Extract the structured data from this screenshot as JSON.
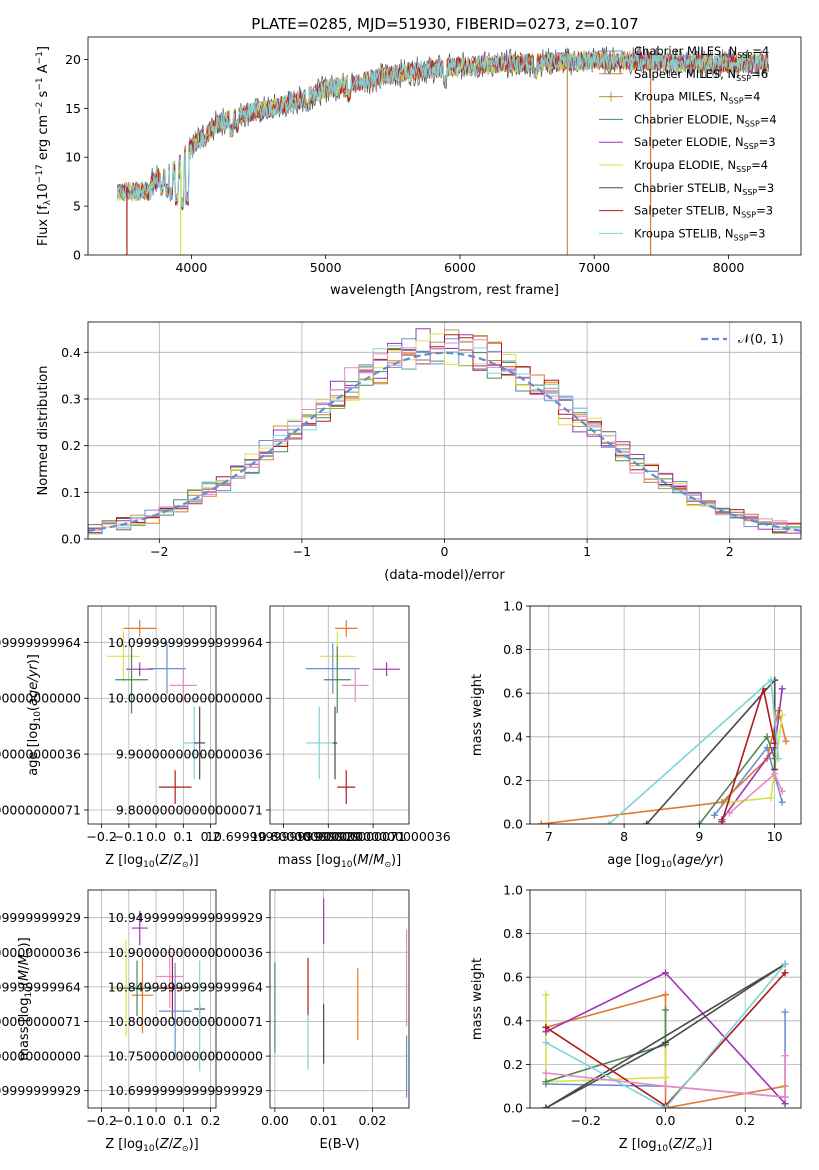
{
  "figure_title": "PLATE=0285, MJD=51930, FIBERID=0273, z=0.107",
  "colors": {
    "Chabrier MILES": "#6b8fd6",
    "Salpeter MILES": "#e07b2e",
    "Kroupa MILES": "#b89a4a",
    "Chabrier ELODIE": "#4c8a57",
    "Salpeter ELODIE": "#9b36b7",
    "Kroupa ELODIE": "#d9e24a",
    "Chabrier STELIB": "#4a4a4a",
    "Salpeter STELIB": "#b01a1a",
    "Kroupa STELIB": "#7fd3d8",
    "pink": "#e88ac4",
    "normal_curve": "#5b8fd6"
  },
  "chart_data": [
    {
      "id": "spectrum",
      "type": "line",
      "title": "PLATE=0285, MJD=51930, FIBERID=0273, z=0.107",
      "xlabel_parts": [
        "wavelength [Angstrom, rest frame]"
      ],
      "ylabel_parts": [
        "Flux [f",
        "λ",
        "10",
        "−17",
        " erg cm",
        "−2",
        " s",
        "−1",
        " A",
        "−1",
        "]"
      ],
      "xlim": [
        3230,
        8540
      ],
      "ylim": [
        0,
        22.3
      ],
      "xticks": [
        4000,
        5000,
        6000,
        7000,
        8000
      ],
      "yticks": [
        0,
        5,
        10,
        15,
        20
      ],
      "grid": false,
      "legend_position": "top-right",
      "envelope": [
        [
          3450,
          7.0
        ],
        [
          3600,
          7.0
        ],
        [
          3800,
          8.0
        ],
        [
          3900,
          9.0
        ],
        [
          4000,
          11.0
        ],
        [
          4200,
          13.5
        ],
        [
          4400,
          14.5
        ],
        [
          4600,
          15.0
        ],
        [
          4800,
          15.8
        ],
        [
          5000,
          17.0
        ],
        [
          5200,
          17.5
        ],
        [
          5400,
          18.2
        ],
        [
          5600,
          18.7
        ],
        [
          5800,
          19.0
        ],
        [
          6000,
          19.3
        ],
        [
          6200,
          19.5
        ],
        [
          6400,
          19.6
        ],
        [
          6600,
          19.7
        ],
        [
          6800,
          19.8
        ],
        [
          7000,
          19.9
        ],
        [
          7200,
          19.9
        ],
        [
          7400,
          19.8
        ],
        [
          7600,
          19.7
        ],
        [
          7800,
          19.6
        ],
        [
          8000,
          19.6
        ],
        [
          8300,
          19.6
        ]
      ],
      "dips": [
        [
          3500,
          0.5
        ],
        [
          3780,
          6.0
        ],
        [
          3820,
          5.8
        ],
        [
          3850,
          5.5
        ],
        [
          3890,
          5.0
        ],
        [
          3934,
          4.5
        ],
        [
          3968,
          5.0
        ],
        [
          4100,
          11.0
        ],
        [
          4300,
          12.0
        ],
        [
          4340,
          12.5
        ],
        [
          4861,
          14.5
        ],
        [
          5175,
          15.5
        ],
        [
          5270,
          16.8
        ],
        [
          5890,
          17.0
        ],
        [
          6563,
          17.8
        ]
      ],
      "spikes": [
        [
          6800,
          0,
          "Kroupa MILES"
        ],
        [
          3920,
          0,
          "Kroupa ELODIE"
        ],
        [
          7420,
          0,
          "Salpeter MILES"
        ],
        [
          3520,
          0,
          "Salpeter STELIB"
        ]
      ],
      "legend": [
        {
          "label": "Chabrier MILES, N",
          "sub": "SSP",
          "eq": "=4"
        },
        {
          "label": "Salpeter MILES, N",
          "sub": "SSP",
          "eq": "=6"
        },
        {
          "label": "Kroupa MILES, N",
          "sub": "SSP",
          "eq": "=4"
        },
        {
          "label": "Chabrier ELODIE, N",
          "sub": "SSP",
          "eq": "=4"
        },
        {
          "label": "Salpeter ELODIE, N",
          "sub": "SSP",
          "eq": "=3"
        },
        {
          "label": "Kroupa ELODIE, N",
          "sub": "SSP",
          "eq": "=4"
        },
        {
          "label": "Chabrier STELIB, N",
          "sub": "SSP",
          "eq": "=3"
        },
        {
          "label": "Salpeter STELIB, N",
          "sub": "SSP",
          "eq": "=3"
        },
        {
          "label": "Kroupa STELIB, N",
          "sub": "SSP",
          "eq": "=3"
        }
      ]
    },
    {
      "id": "residuals",
      "type": "bar",
      "xlabel": "(data-model)/error",
      "ylabel": "Normed distribution",
      "xlim": [
        -2.5,
        2.5
      ],
      "ylim": [
        0,
        0.465
      ],
      "xticks": [
        -2,
        -1,
        0,
        1,
        2
      ],
      "yticks": [
        0.0,
        0.1,
        0.2,
        0.3,
        0.4
      ],
      "grid": true,
      "legend_position": "top-right",
      "legend_label": "𝒩(0, 1)",
      "bin_width": 0.1
    },
    {
      "id": "age_vs_Z",
      "type": "scatter",
      "xlabel": "Z [log",
      "ylabel": "age [log",
      "xlim": [
        -0.25,
        0.22
      ],
      "ylim": [
        9.775,
        10.165
      ],
      "xticks": [
        -0.2,
        -0.1,
        0.0,
        0.1,
        0.2
      ],
      "yticks": [
        9.8,
        9.9,
        10.0,
        10.1
      ],
      "grid": true,
      "points": [
        {
          "series": "Salpeter MILES",
          "x": -0.06,
          "y": 10.125,
          "xerr": 0.06,
          "yerr": 0.015
        },
        {
          "series": "Kroupa ELODIE",
          "x": -0.12,
          "y": 10.075,
          "xerr": 0.06,
          "yerr": 0.045
        },
        {
          "series": "Salpeter ELODIE",
          "x": -0.06,
          "y": 10.052,
          "xerr": 0.05,
          "yerr": 0.012
        },
        {
          "series": "Chabrier MILES",
          "x": 0.04,
          "y": 10.053,
          "xerr": 0.07,
          "yerr": 0.045
        },
        {
          "series": "Chabrier ELODIE",
          "x": -0.09,
          "y": 10.033,
          "xerr": 0.06,
          "yerr": 0.06
        },
        {
          "series": "pink",
          "x": 0.1,
          "y": 10.023,
          "xerr": 0.05,
          "yerr": 0.03
        },
        {
          "series": "Kroupa STELIB",
          "x": 0.14,
          "y": 9.92,
          "xerr": 0.04,
          "yerr": 0.065
        },
        {
          "series": "Salpeter STELIB",
          "x": 0.07,
          "y": 9.841,
          "xerr": 0.06,
          "yerr": 0.03
        },
        {
          "series": "Chabrier STELIB",
          "x": 0.16,
          "y": 9.92,
          "xerr": 0.02,
          "yerr": 0.065
        }
      ]
    },
    {
      "id": "age_vs_mass",
      "type": "scatter",
      "xlabel": "mass [log",
      "ylabel": "",
      "xlim": [
        10.67,
        10.98
      ],
      "ylim": [
        9.775,
        10.165
      ],
      "xticks": [
        10.7,
        10.8,
        10.9
      ],
      "yticks": [
        9.8,
        9.9,
        10.0,
        10.1
      ],
      "grid": true,
      "points": [
        {
          "series": "Salpeter MILES",
          "x": 10.84,
          "y": 10.125,
          "xerr": 0.025,
          "yerr": 0.015
        },
        {
          "series": "Kroupa ELODIE",
          "x": 10.82,
          "y": 10.075,
          "xerr": 0.04,
          "yerr": 0.045
        },
        {
          "series": "Chabrier MILES",
          "x": 10.81,
          "y": 10.053,
          "xerr": 0.06,
          "yerr": 0.045
        },
        {
          "series": "Salpeter ELODIE",
          "x": 10.93,
          "y": 10.052,
          "xerr": 0.03,
          "yerr": 0.012
        },
        {
          "series": "Chabrier ELODIE",
          "x": 10.82,
          "y": 10.033,
          "xerr": 0.03,
          "yerr": 0.06
        },
        {
          "series": "pink",
          "x": 10.86,
          "y": 10.023,
          "xerr": 0.03,
          "yerr": 0.03
        },
        {
          "series": "Kroupa STELIB",
          "x": 10.78,
          "y": 9.92,
          "xerr": 0.03,
          "yerr": 0.065
        },
        {
          "series": "Salpeter STELIB",
          "x": 10.84,
          "y": 9.841,
          "xerr": 0.02,
          "yerr": 0.03
        },
        {
          "series": "Chabrier STELIB",
          "x": 10.815,
          "y": 9.92,
          "xerr": 0.005,
          "yerr": 0.065
        }
      ]
    },
    {
      "id": "weight_vs_age",
      "type": "line",
      "xlabel": "age [log",
      "ylabel": "mass weight",
      "xlim": [
        6.75,
        10.35
      ],
      "ylim": [
        0,
        1.0
      ],
      "xticks": [
        7,
        8,
        9,
        10
      ],
      "yticks": [
        0.0,
        0.2,
        0.4,
        0.6,
        0.8,
        1.0
      ],
      "grid": true,
      "series": [
        {
          "name": "Chabrier MILES",
          "points": [
            [
              9.2,
              0.04
            ],
            [
              9.9,
              0.35
            ],
            [
              10.1,
              0.1
            ]
          ]
        },
        {
          "name": "Salpeter MILES",
          "points": [
            [
              6.9,
              0.0
            ],
            [
              9.3,
              0.1
            ],
            [
              9.9,
              0.3
            ],
            [
              10.05,
              0.52
            ],
            [
              10.15,
              0.38
            ]
          ]
        },
        {
          "name": "Chabrier ELODIE",
          "points": [
            [
              9.0,
              0.0
            ],
            [
              9.9,
              0.4
            ],
            [
              10.0,
              0.3
            ]
          ]
        },
        {
          "name": "Salpeter ELODIE",
          "points": [
            [
              9.3,
              0.02
            ],
            [
              10.0,
              0.35
            ],
            [
              10.1,
              0.62
            ]
          ]
        },
        {
          "name": "Kroupa ELODIE",
          "points": [
            [
              9.4,
              0.1
            ],
            [
              9.95,
              0.12
            ],
            [
              10.1,
              0.5
            ]
          ]
        },
        {
          "name": "Chabrier STELIB",
          "points": [
            [
              8.3,
              0.0
            ],
            [
              10.0,
              0.66
            ],
            [
              10.0,
              0.25
            ]
          ]
        },
        {
          "name": "Salpeter STELIB",
          "points": [
            [
              9.3,
              0.01
            ],
            [
              9.85,
              0.62
            ],
            [
              10.0,
              0.37
            ]
          ]
        },
        {
          "name": "Kroupa STELIB",
          "points": [
            [
              7.8,
              0.0
            ],
            [
              9.95,
              0.66
            ],
            [
              10.05,
              0.3
            ]
          ]
        },
        {
          "name": "pink",
          "points": [
            [
              9.4,
              0.05
            ],
            [
              10.0,
              0.23
            ],
            [
              10.1,
              0.15
            ]
          ]
        }
      ]
    },
    {
      "id": "mass_vs_Z",
      "type": "scatter",
      "xlabel": "Z [log",
      "ylabel": "mass [log",
      "xlim": [
        -0.25,
        0.22
      ],
      "ylim": [
        10.675,
        10.99
      ],
      "xticks": [
        -0.2,
        -0.1,
        0.0,
        0.1,
        0.2
      ],
      "yticks": [
        10.7,
        10.75,
        10.8,
        10.85,
        10.9,
        10.95
      ],
      "grid": true,
      "points": [
        {
          "series": "Salpeter ELODIE",
          "x": -0.06,
          "y": 10.935,
          "xerr": 0.03,
          "yerr": 0.025
        },
        {
          "series": "Kroupa ELODIE",
          "x": -0.11,
          "y": 10.848,
          "xerr": 0.06,
          "yerr": 0.07
        },
        {
          "series": "Salpeter MILES",
          "x": -0.05,
          "y": 10.838,
          "xerr": 0.04,
          "yerr": 0.055
        },
        {
          "series": "pink",
          "x": 0.05,
          "y": 10.865,
          "xerr": 0.05,
          "yerr": 0.045
        },
        {
          "series": "Salpeter STELIB",
          "x": 0.06,
          "y": 10.848,
          "xerr": 0.05,
          "yerr": 0.045
        },
        {
          "series": "Chabrier ELODIE",
          "x": -0.07,
          "y": 10.848,
          "xerr": 0.07,
          "yerr": 0.04
        },
        {
          "series": "Chabrier MILES",
          "x": 0.07,
          "y": 10.815,
          "xerr": 0.06,
          "yerr": 0.07
        },
        {
          "series": "Chabrier STELIB",
          "x": 0.16,
          "y": 10.818,
          "xerr": 0.02,
          "yerr": 0.006
        },
        {
          "series": "Kroupa STELIB",
          "x": 0.16,
          "y": 10.808,
          "xerr": 0.005,
          "yerr": 0.08
        }
      ]
    },
    {
      "id": "mass_vs_ebv",
      "type": "scatter",
      "xlabel": "E(B-V)",
      "ylabel": "",
      "xlim": [
        -0.001,
        0.0275
      ],
      "ylim": [
        10.675,
        10.99
      ],
      "xticks": [
        0.0,
        0.01,
        0.02
      ],
      "yticks": [
        10.7,
        10.75,
        10.8,
        10.85,
        10.9,
        10.95
      ],
      "grid": true,
      "points": [
        {
          "series": "Salpeter ELODIE",
          "x": 0.01,
          "y": 10.945,
          "yerr": 0.033
        },
        {
          "series": "Chabrier ELODIE",
          "x": 0.0,
          "y": 10.82,
          "yerr": 0.065
        },
        {
          "series": "Salpeter STELIB",
          "x": 0.0068,
          "y": 10.85,
          "yerr": 0.042
        },
        {
          "series": "Kroupa STELIB",
          "x": 0.0068,
          "y": 10.77,
          "yerr": 0.04
        },
        {
          "series": "Chabrier STELIB",
          "x": 0.01,
          "y": 10.782,
          "yerr": 0.043
        },
        {
          "series": "Salpeter MILES",
          "x": 0.017,
          "y": 10.825,
          "yerr": 0.052
        },
        {
          "series": "pink",
          "x": 0.027,
          "y": 10.863,
          "yerr": 0.07
        },
        {
          "series": "Chabrier MILES",
          "x": 0.027,
          "y": 10.735,
          "yerr": 0.045
        }
      ]
    },
    {
      "id": "weight_vs_Z",
      "type": "line",
      "xlabel": "Z [log",
      "ylabel": "mass weight",
      "xlim": [
        -0.34,
        0.34
      ],
      "ylim": [
        0,
        1.0
      ],
      "xticks": [
        -0.2,
        0.0,
        0.2
      ],
      "yticks": [
        0.0,
        0.2,
        0.4,
        0.6,
        0.8,
        1.0
      ],
      "grid": true,
      "series": [
        {
          "name": "Chabrier MILES",
          "points": [
            [
              -0.3,
              0.11
            ],
            [
              0.0,
              0.1
            ],
            [
              0.3,
              0.05
            ],
            [
              0.3,
              0.44
            ]
          ]
        },
        {
          "name": "Salpeter MILES",
          "points": [
            [
              -0.3,
              0.37
            ],
            [
              0.0,
              0.52
            ],
            [
              0.0,
              0.0
            ],
            [
              0.3,
              0.1
            ]
          ]
        },
        {
          "name": "Kroupa ELODIE",
          "points": [
            [
              -0.3,
              0.52
            ],
            [
              -0.3,
              0.12
            ],
            [
              0.0,
              0.14
            ],
            [
              0.0,
              0.3
            ]
          ]
        },
        {
          "name": "Chabrier ELODIE",
          "points": [
            [
              -0.3,
              0.12
            ],
            [
              0.0,
              0.29
            ],
            [
              0.0,
              0.45
            ]
          ]
        },
        {
          "name": "Salpeter ELODIE",
          "points": [
            [
              -0.3,
              0.35
            ],
            [
              0.0,
              0.62
            ],
            [
              0.3,
              0.02
            ]
          ]
        },
        {
          "name": "Chabrier STELIB",
          "points": [
            [
              -0.3,
              0.0
            ],
            [
              0.0,
              0.3
            ],
            [
              0.3,
              0.66
            ],
            [
              -0.3,
              0.0
            ]
          ]
        },
        {
          "name": "Salpeter STELIB",
          "points": [
            [
              -0.3,
              0.37
            ],
            [
              0.0,
              0.01
            ],
            [
              0.3,
              0.62
            ]
          ]
        },
        {
          "name": "Kroupa STELIB",
          "points": [
            [
              -0.3,
              0.3
            ],
            [
              0.0,
              0.0
            ],
            [
              0.3,
              0.66
            ]
          ]
        },
        {
          "name": "pink",
          "points": [
            [
              -0.3,
              0.16
            ],
            [
              0.0,
              0.1
            ],
            [
              0.3,
              0.05
            ],
            [
              0.3,
              0.24
            ]
          ]
        }
      ]
    }
  ]
}
